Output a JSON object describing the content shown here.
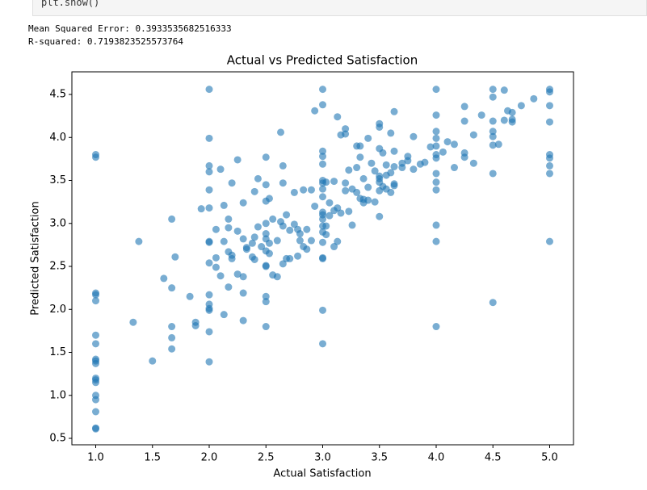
{
  "code_cell": {
    "source": "plt.show()"
  },
  "output": {
    "lines": [
      "Mean Squared Error: 0.3933535682516333",
      "R-squared: 0.7193823525573764"
    ]
  },
  "chart_data": {
    "type": "scatter",
    "title": "Actual vs Predicted Satisfaction",
    "x_label": "Actual Satisfaction",
    "y_label": "Predicted Satisfaction",
    "color": "#1f77b4",
    "alpha": 0.6,
    "xlim": [
      0.79,
      5.21
    ],
    "ylim": [
      0.425,
      4.763
    ],
    "xticks": [
      {
        "value": 1,
        "label": "1.0"
      },
      1.5,
      {
        "value": 2,
        "label": "2.0"
      },
      2.5,
      {
        "value": 3,
        "label": "3.0"
      },
      3.5,
      {
        "value": 4,
        "label": "4.0"
      },
      4.5,
      {
        "value": 5,
        "label": "5.0"
      }
    ],
    "yticks": [
      0.5,
      {
        "value": 1,
        "label": "1.0"
      },
      1.5,
      {
        "value": 2,
        "label": "2.0"
      },
      2.5,
      {
        "value": 3,
        "label": "3.0"
      },
      3.5,
      {
        "value": 4,
        "label": "4.0"
      },
      4.5
    ],
    "x": [
      1,
      1,
      1,
      1,
      1,
      1,
      1,
      1,
      1,
      1,
      1,
      1,
      1,
      1,
      1,
      1,
      1,
      1,
      1.33,
      1.38,
      1.5,
      1.6,
      1.67,
      1.67,
      1.67,
      1.67,
      1.67,
      1.7,
      1.83,
      1.88,
      1.88,
      1.93,
      2,
      2,
      2,
      2,
      2,
      2,
      2,
      2,
      2,
      2,
      2,
      2,
      2,
      2,
      2,
      2.06,
      2.06,
      2.06,
      2.1,
      2.1,
      2.13,
      2.13,
      2.13,
      2.17,
      2.17,
      2.17,
      2.17,
      2.2,
      2.2,
      2.2,
      2.25,
      2.25,
      2.25,
      2.3,
      2.3,
      2.3,
      2.3,
      2.3,
      2.33,
      2.33,
      2.38,
      2.38,
      2.4,
      2.4,
      2.4,
      2.43,
      2.43,
      2.46,
      2.5,
      2.5,
      2.5,
      2.5,
      2.5,
      2.5,
      2.5,
      2.5,
      2.5,
      2.5,
      2.5,
      2.5,
      2.53,
      2.53,
      2.53,
      2.56,
      2.56,
      2.6,
      2.6,
      2.63,
      2.63,
      2.65,
      2.65,
      2.65,
      2.65,
      2.68,
      2.68,
      2.71,
      2.71,
      2.75,
      2.75,
      2.78,
      2.78,
      2.8,
      2.8,
      2.83,
      2.83,
      2.86,
      2.86,
      2.9,
      2.9,
      2.93,
      2.93,
      3,
      3,
      3,
      3,
      3,
      3,
      3,
      3,
      3,
      3,
      3,
      3,
      3,
      3,
      3,
      3,
      3,
      3,
      3,
      3.03,
      3.03,
      3.03,
      3.06,
      3.06,
      3.1,
      3.1,
      3.1,
      3.13,
      3.13,
      3.13,
      3.16,
      3.16,
      3.2,
      3.2,
      3.2,
      3.2,
      3.23,
      3.23,
      3.26,
      3.26,
      3.3,
      3.3,
      3.3,
      3.33,
      3.33,
      3.33,
      3.36,
      3.36,
      3.36,
      3.4,
      3.4,
      3.4,
      3.43,
      3.46,
      3.46,
      3.5,
      3.5,
      3.5,
      3.5,
      3.5,
      3.5,
      3.5,
      3.5,
      3.53,
      3.53,
      3.56,
      3.56,
      3.56,
      3.6,
      3.6,
      3.6,
      3.63,
      3.63,
      3.63,
      3.63,
      3.63,
      3.7,
      3.7,
      3.75,
      3.75,
      3.8,
      3.8,
      3.86,
      3.9,
      3.95,
      4,
      4,
      4,
      4,
      4,
      4,
      4,
      4,
      4,
      4,
      4,
      4,
      4,
      4.06,
      4.1,
      4.16,
      4.16,
      4.25,
      4.25,
      4.25,
      4.25,
      4.33,
      4.33,
      4.4,
      4.5,
      4.5,
      4.5,
      4.5,
      4.5,
      4.5,
      4.5,
      4.5,
      4.55,
      4.6,
      4.6,
      4.63,
      4.67,
      4.67,
      4.67,
      4.75,
      4.86,
      5,
      5,
      5,
      5,
      5,
      5,
      5,
      5,
      5
    ],
    "y": [
      3.8,
      3.77,
      2.19,
      2.17,
      2.1,
      1.7,
      1.6,
      1.42,
      1.4,
      1.37,
      1.2,
      1.18,
      1.15,
      1,
      0.95,
      0.81,
      0.62,
      0.61,
      1.85,
      2.79,
      1.4,
      2.36,
      3.05,
      2.25,
      1.8,
      1.67,
      1.54,
      2.61,
      2.15,
      1.85,
      1.81,
      3.17,
      4.56,
      3.99,
      3.67,
      3.6,
      3.39,
      3.18,
      2.79,
      2.78,
      2.54,
      2.17,
      2.06,
      2.01,
      1.99,
      1.74,
      1.39,
      2.93,
      2.6,
      2.49,
      3.63,
      2.39,
      3.21,
      2.79,
      1.94,
      3.05,
      2.95,
      2.67,
      2.26,
      3.47,
      2.63,
      2.59,
      3.74,
      2.91,
      2.41,
      3.24,
      2.82,
      2.38,
      2.19,
      1.87,
      2.72,
      2.7,
      2.77,
      2.61,
      3.37,
      2.84,
      2.58,
      3.52,
      2.96,
      2.73,
      3.77,
      3.45,
      3.26,
      3,
      2.88,
      2.82,
      2.68,
      2.51,
      2.5,
      2.15,
      2.09,
      1.8,
      3.29,
      2.77,
      2.65,
      3.05,
      2.4,
      2.8,
      2.38,
      4.06,
      3.02,
      3.67,
      3.47,
      2.97,
      2.53,
      3.1,
      2.59,
      2.92,
      2.59,
      3.36,
      2.99,
      2.93,
      2.62,
      2.88,
      2.8,
      3.39,
      2.73,
      2.93,
      2.7,
      3.39,
      2.8,
      4.31,
      3.2,
      4.56,
      4.38,
      3.84,
      3.78,
      3.69,
      3.5,
      3.47,
      3.4,
      3.31,
      3.13,
      3.1,
      3.05,
      2.97,
      2.9,
      2.78,
      2.6,
      2.59,
      1.99,
      1.6,
      3.48,
      2.97,
      2.87,
      3.24,
      3.09,
      3.49,
      3.15,
      2.73,
      4.24,
      3.18,
      2.79,
      3.12,
      4.03,
      4.1,
      4.04,
      3.47,
      3.38,
      3.62,
      3.14,
      3.4,
      2.98,
      3.9,
      3.65,
      3.36,
      3.9,
      3.77,
      3.29,
      3.52,
      3.28,
      3.24,
      3.99,
      3.42,
      3.27,
      3.7,
      3.61,
      3.25,
      4.16,
      4.12,
      3.87,
      3.55,
      3.52,
      3.48,
      3.38,
      3.08,
      3.82,
      3.43,
      3.68,
      3.56,
      3.4,
      4.05,
      3.59,
      3.36,
      4.3,
      3.84,
      3.66,
      3.46,
      3.44,
      3.7,
      3.65,
      3.78,
      3.73,
      4.01,
      3.63,
      3.69,
      3.71,
      3.89,
      4.56,
      4.26,
      4.07,
      3.99,
      3.9,
      3.8,
      3.76,
      3.58,
      3.48,
      3.39,
      2.98,
      2.79,
      1.8,
      3.83,
      3.95,
      3.92,
      3.65,
      4.36,
      4.19,
      3.82,
      3.77,
      4.03,
      3.7,
      4.26,
      4.56,
      4.47,
      4.19,
      4.07,
      4.01,
      3.91,
      3.58,
      2.08,
      3.92,
      4.55,
      4.2,
      4.31,
      4.29,
      4.21,
      4.18,
      4.37,
      4.45,
      4.56,
      4.53,
      4.37,
      4.18,
      3.8,
      3.76,
      3.67,
      3.58,
      2.79
    ]
  }
}
